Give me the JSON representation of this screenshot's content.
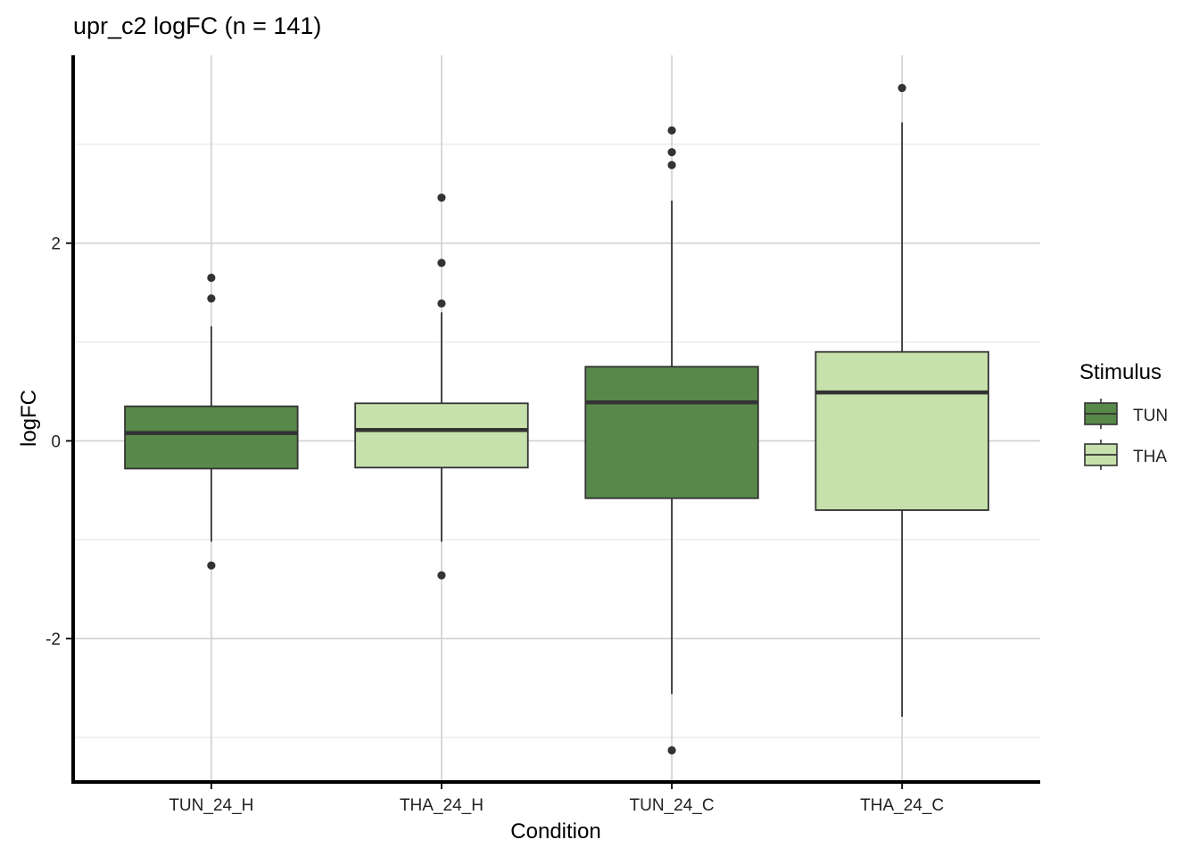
{
  "chart_data": {
    "type": "boxplot",
    "title": "upr_c2 logFC (n = 141)",
    "xlabel": "Condition",
    "ylabel": "logFC",
    "ylim": [
      -3.45,
      3.9
    ],
    "yticks": [
      -2,
      0,
      2
    ],
    "ytick_labels": [
      "-2",
      "0",
      "2"
    ],
    "grid": "major and minor, both axes",
    "categories": [
      "TUN_24_H",
      "THA_24_H",
      "TUN_24_C",
      "THA_24_C"
    ],
    "boxes": [
      {
        "category": "TUN_24_H",
        "group": "TUN",
        "whisker_low": -1.02,
        "q1": -0.28,
        "median": 0.08,
        "q3": 0.35,
        "whisker_high": 1.16,
        "outliers": [
          1.65,
          1.44,
          -1.26
        ]
      },
      {
        "category": "THA_24_H",
        "group": "THA",
        "whisker_low": -1.02,
        "q1": -0.27,
        "median": 0.11,
        "q3": 0.38,
        "whisker_high": 1.3,
        "outliers": [
          2.46,
          1.8,
          1.39,
          -1.36
        ]
      },
      {
        "category": "TUN_24_C",
        "group": "TUN",
        "whisker_low": -2.56,
        "q1": -0.58,
        "median": 0.39,
        "q3": 0.75,
        "whisker_high": 2.43,
        "outliers": [
          3.14,
          2.92,
          2.79,
          -3.13
        ]
      },
      {
        "category": "THA_24_C",
        "group": "THA",
        "whisker_low": -2.79,
        "q1": -0.7,
        "median": 0.49,
        "q3": 0.9,
        "whisker_high": 3.22,
        "outliers": [
          3.57
        ]
      }
    ],
    "legend": {
      "title": "Stimulus",
      "placement": "right",
      "entries": [
        {
          "label": "TUN",
          "color": "#58884a"
        },
        {
          "label": "THA",
          "color": "#c6e1ab"
        }
      ]
    },
    "colors": {
      "TUN": "#58884a",
      "THA": "#c6e1ab",
      "outline": "#333333",
      "grid_major": "#d0d0d0",
      "grid_minor": "#e6e6e6",
      "axis": "#000000"
    }
  }
}
